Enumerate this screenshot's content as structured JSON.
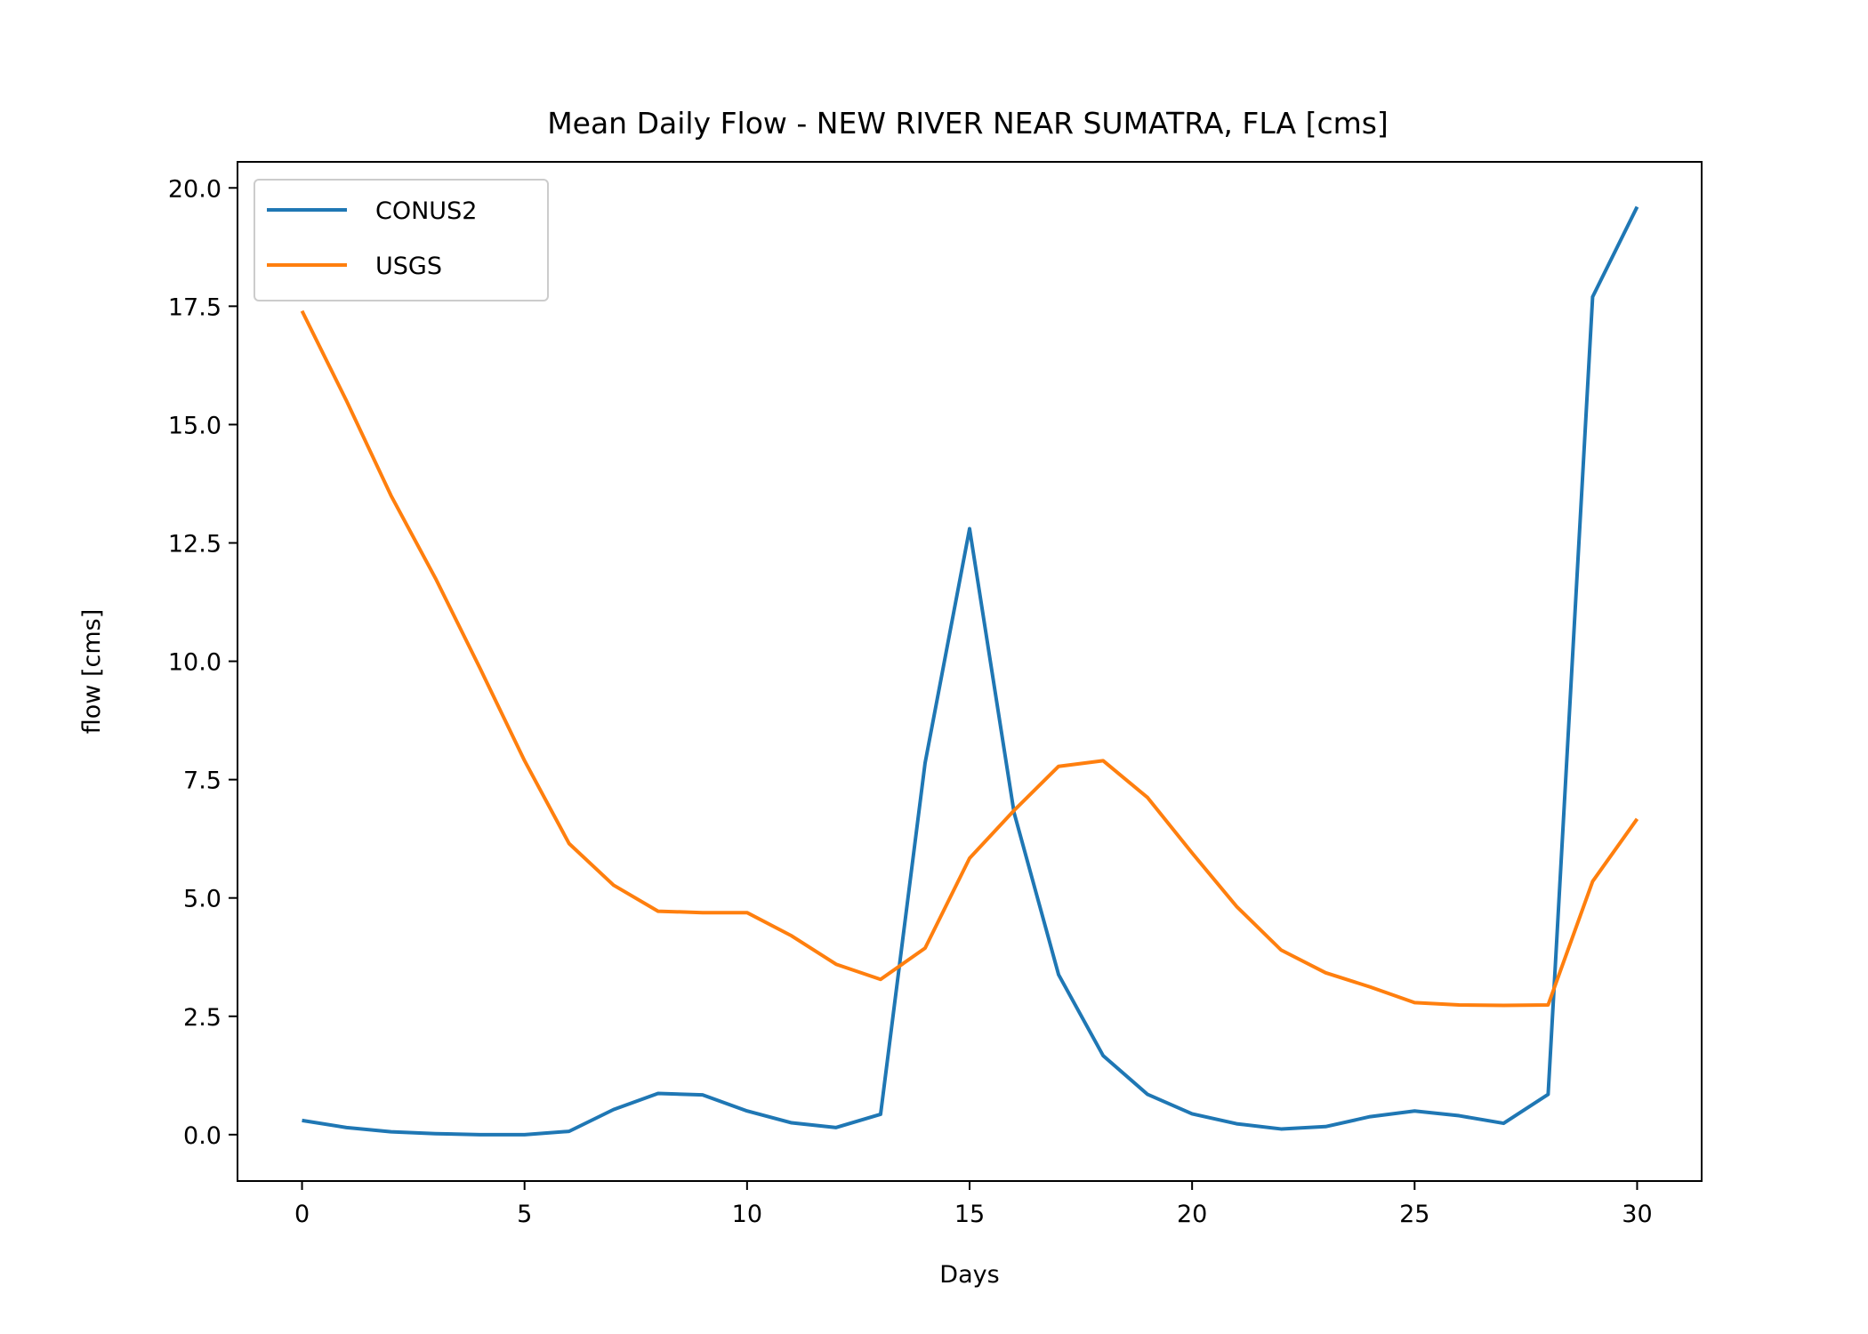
{
  "chart_data": {
    "type": "line",
    "title": "Mean Daily Flow - NEW RIVER NEAR SUMATRA, FLA [cms]",
    "xlabel": "Days",
    "ylabel": "flow [cms]",
    "xlim": [
      -1.45,
      31.45
    ],
    "ylim": [
      -0.98,
      20.55
    ],
    "xticks": [
      0,
      5,
      10,
      15,
      20,
      25,
      30
    ],
    "xtick_labels": [
      "0",
      "5",
      "10",
      "15",
      "20",
      "25",
      "30"
    ],
    "yticks": [
      0,
      2.5,
      5,
      7.5,
      10,
      12.5,
      15,
      17.5,
      20
    ],
    "ytick_labels": [
      "0.0",
      "2.5",
      "5.0",
      "7.5",
      "10.0",
      "12.5",
      "15.0",
      "17.5",
      "20.0"
    ],
    "grid": false,
    "legend": "top-left",
    "x": [
      0,
      1,
      2,
      3,
      4,
      5,
      6,
      7,
      8,
      9,
      10,
      11,
      12,
      13,
      14,
      15,
      16,
      17,
      18,
      19,
      20,
      21,
      22,
      23,
      24,
      25,
      26,
      27,
      28,
      29,
      30
    ],
    "series": [
      {
        "name": "CONUS2",
        "color": "#1f77b4",
        "values": [
          0.3,
          0.15,
          0.06,
          0.02,
          0.0,
          0.0,
          0.07,
          0.53,
          0.87,
          0.84,
          0.5,
          0.25,
          0.15,
          0.43,
          7.85,
          12.8,
          6.8,
          3.38,
          1.67,
          0.85,
          0.44,
          0.23,
          0.12,
          0.17,
          0.38,
          0.5,
          0.4,
          0.24,
          0.85,
          17.7,
          19.6
        ]
      },
      {
        "name": "USGS",
        "color": "#ff7f0e",
        "values": [
          17.4,
          15.5,
          13.5,
          11.75,
          9.85,
          7.9,
          6.15,
          5.27,
          4.72,
          4.69,
          4.69,
          4.2,
          3.6,
          3.28,
          3.94,
          5.84,
          6.85,
          7.78,
          7.9,
          7.12,
          5.95,
          4.82,
          3.9,
          3.42,
          3.12,
          2.79,
          2.74,
          2.73,
          2.74,
          5.35,
          6.67
        ]
      }
    ]
  }
}
